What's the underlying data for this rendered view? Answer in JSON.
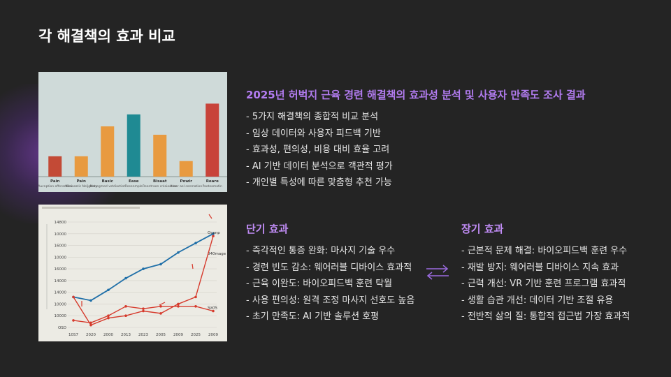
{
  "slide": {
    "title": "각 해결책의 효과 비교"
  },
  "report": {
    "title": "2025년 허벅지 근육 경련 해결책의 효과성 분석 및 사용자 만족도 조사 결과",
    "bullets": [
      "- 5가지 해결책의 종합적 비교 분석",
      "- 임상 데이터와 사용자 피드백 기반",
      "- 효과성, 편의성, 비용 대비 효율 고려",
      "- AI 기반 데이터 분석으로 객관적 평가",
      "- 개인별 특성에 따른 맞춤형 추천 가능"
    ]
  },
  "short_term": {
    "heading": "단기 효과",
    "bullets": [
      "- 즉각적인 통증 완화: 마사지 기술 우수",
      "- 경련 빈도 감소: 웨어러블 디바이스 효과적",
      "- 근육 이완도: 바이오피드백 훈련 탁월",
      "- 사용 편의성: 원격 조정 마사지 선호도 높음",
      "- 초기 만족도: AI 기반 솔루션 호평"
    ]
  },
  "long_term": {
    "heading": "장기 효과",
    "bullets": [
      "- 근본적 문제 해결: 바이오피드백 훈련 우수",
      "- 재발 방지: 웨어러블 디바이스 지속 효과",
      "- 근력 개선: VR 기반 훈련 프로그램 효과적",
      "- 생활 습관 개선: 데이터 기반 조절 유용",
      "- 전반적 삶의 질: 통합적 접근법 가장 효과적"
    ]
  },
  "icons": {
    "swap": "swap-arrows-icon"
  },
  "colors": {
    "background": "#242424",
    "accent": "#b27cf0",
    "text": "#e6e6e6"
  },
  "chart_data": [
    {
      "type": "bar",
      "categories": [
        "Pain",
        "Pain",
        "Basic",
        "Ease",
        "Bisaat",
        "Powir",
        "Reare"
      ],
      "category_sublabels": [
        "Aucnption offerantion",
        "Nitriasatic Neljgenty",
        "Manegmod vstdiactiot",
        "Resenmple",
        "Reentraon cnlaioation",
        "Azser ael conmation",
        "Paoteamatin"
      ],
      "values": [
        17,
        17,
        42,
        52,
        35,
        13,
        61
      ],
      "colors": [
        "#c34a36",
        "#e89a40",
        "#e89a40",
        "#1f8a93",
        "#e89a40",
        "#e89a40",
        "#c8433a"
      ],
      "ylim": [
        0,
        70
      ]
    },
    {
      "type": "line",
      "x": [
        "10S7",
        "2020",
        "2000",
        "2013",
        "2023",
        "2005",
        "2009",
        "2025",
        "2009"
      ],
      "y_tick_labels": [
        "OSD",
        "10000",
        "10000",
        "14000",
        "14000",
        "16000",
        "10000",
        "16000",
        "10000",
        "14800"
      ],
      "series": [
        {
          "name": "840mage",
          "values": [
            13,
            11.5,
            16,
            21,
            25,
            27,
            32,
            36,
            40
          ],
          "color": "#1f6fa8"
        },
        {
          "name": "Ocenp",
          "values": [
            13,
            1,
            4,
            5,
            7,
            6,
            10,
            13,
            39
          ],
          "color": "#d63a2c"
        },
        {
          "name": "Sa0S",
          "values": [
            3,
            2,
            5,
            9,
            8,
            9,
            9,
            9,
            7
          ],
          "color": "#d63a2c"
        }
      ],
      "ylim": [
        0,
        45
      ]
    }
  ]
}
